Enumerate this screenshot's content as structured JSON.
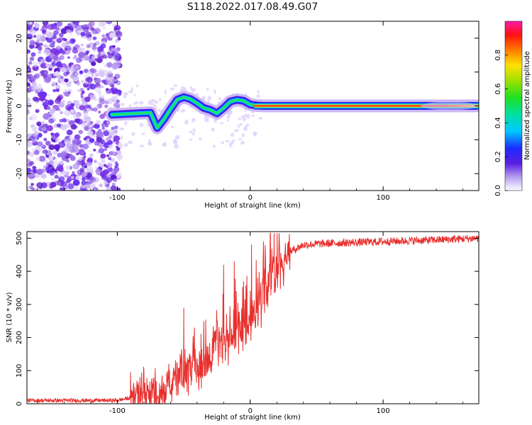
{
  "title": "S118.2022.017.08.49.G07",
  "colors": {
    "snr_line": "#e8302e",
    "scatter_purple": "#7a2fe0",
    "scatter_light": "#d9c9f7"
  },
  "chart_data": [
    {
      "type": "heatmap",
      "title": "S118.2022.017.08.49.G07",
      "xlabel": "Height of straight line (km)",
      "ylabel": "Frequency (Hz)",
      "xlim": [
        -168,
        172
      ],
      "ylim": [
        -25,
        25
      ],
      "xticks": [
        -100,
        0,
        100
      ],
      "xtick_labels": [
        "-100",
        "0",
        "100"
      ],
      "yticks": [
        -20,
        -10,
        0,
        10,
        20
      ],
      "ytick_labels": [
        "-20",
        "-10",
        "0",
        "10",
        "20"
      ],
      "ridge": {
        "x": [
          -104,
          -95,
          -85,
          -75,
          -70,
          -65,
          -60,
          -55,
          -50,
          -45,
          -40,
          -35,
          -30,
          -25,
          -20,
          -15,
          -10,
          -5,
          0,
          5,
          10,
          50,
          100,
          150,
          170
        ],
        "y": [
          -2.6,
          -2.4,
          -2.2,
          -2.0,
          -6.5,
          -4.0,
          -1.0,
          1.8,
          2.6,
          2.0,
          0.8,
          -0.6,
          -1.2,
          -2.2,
          -0.6,
          1.3,
          1.8,
          1.5,
          0.4,
          0.1,
          0.0,
          0.0,
          0.0,
          0.0,
          0.0
        ]
      },
      "colorbar": {
        "label": "Normalized spectral amplitude",
        "range": [
          0.0,
          1.0
        ],
        "ticks": [
          0.0,
          0.2,
          0.4,
          0.6,
          0.8
        ],
        "tick_labels": [
          "0.0",
          "0.2",
          "0.4",
          "0.6",
          "0.8"
        ]
      },
      "grid": false
    },
    {
      "type": "line",
      "xlabel": "Height of straight line (km)",
      "ylabel": "SNR (10 * v/v)",
      "xlim": [
        -168,
        172
      ],
      "ylim": [
        0,
        520
      ],
      "xticks": [
        -100,
        0,
        100
      ],
      "xtick_labels": [
        "-100",
        "0",
        "100"
      ],
      "yticks": [
        0,
        100,
        200,
        300,
        400,
        500
      ],
      "ytick_labels": [
        "0",
        "100",
        "200",
        "300",
        "400",
        "500"
      ],
      "envelope": {
        "x": [
          -168,
          -100,
          -90,
          -80,
          -70,
          -60,
          -50,
          -40,
          -30,
          -20,
          -10,
          0,
          10,
          20,
          30,
          40,
          60,
          100,
          140,
          172
        ],
        "y": [
          10,
          10,
          18,
          40,
          25,
          60,
          90,
          120,
          150,
          180,
          210,
          250,
          320,
          420,
          460,
          480,
          485,
          490,
          495,
          500
        ]
      },
      "spikes": [
        {
          "x": -50,
          "y": 290
        },
        {
          "x": -42,
          "y": 230
        },
        {
          "x": -35,
          "y": 250
        },
        {
          "x": -20,
          "y": 420
        },
        {
          "x": -12,
          "y": 430
        },
        {
          "x": -5,
          "y": 370
        },
        {
          "x": 10,
          "y": 490
        }
      ],
      "grid": false
    }
  ]
}
